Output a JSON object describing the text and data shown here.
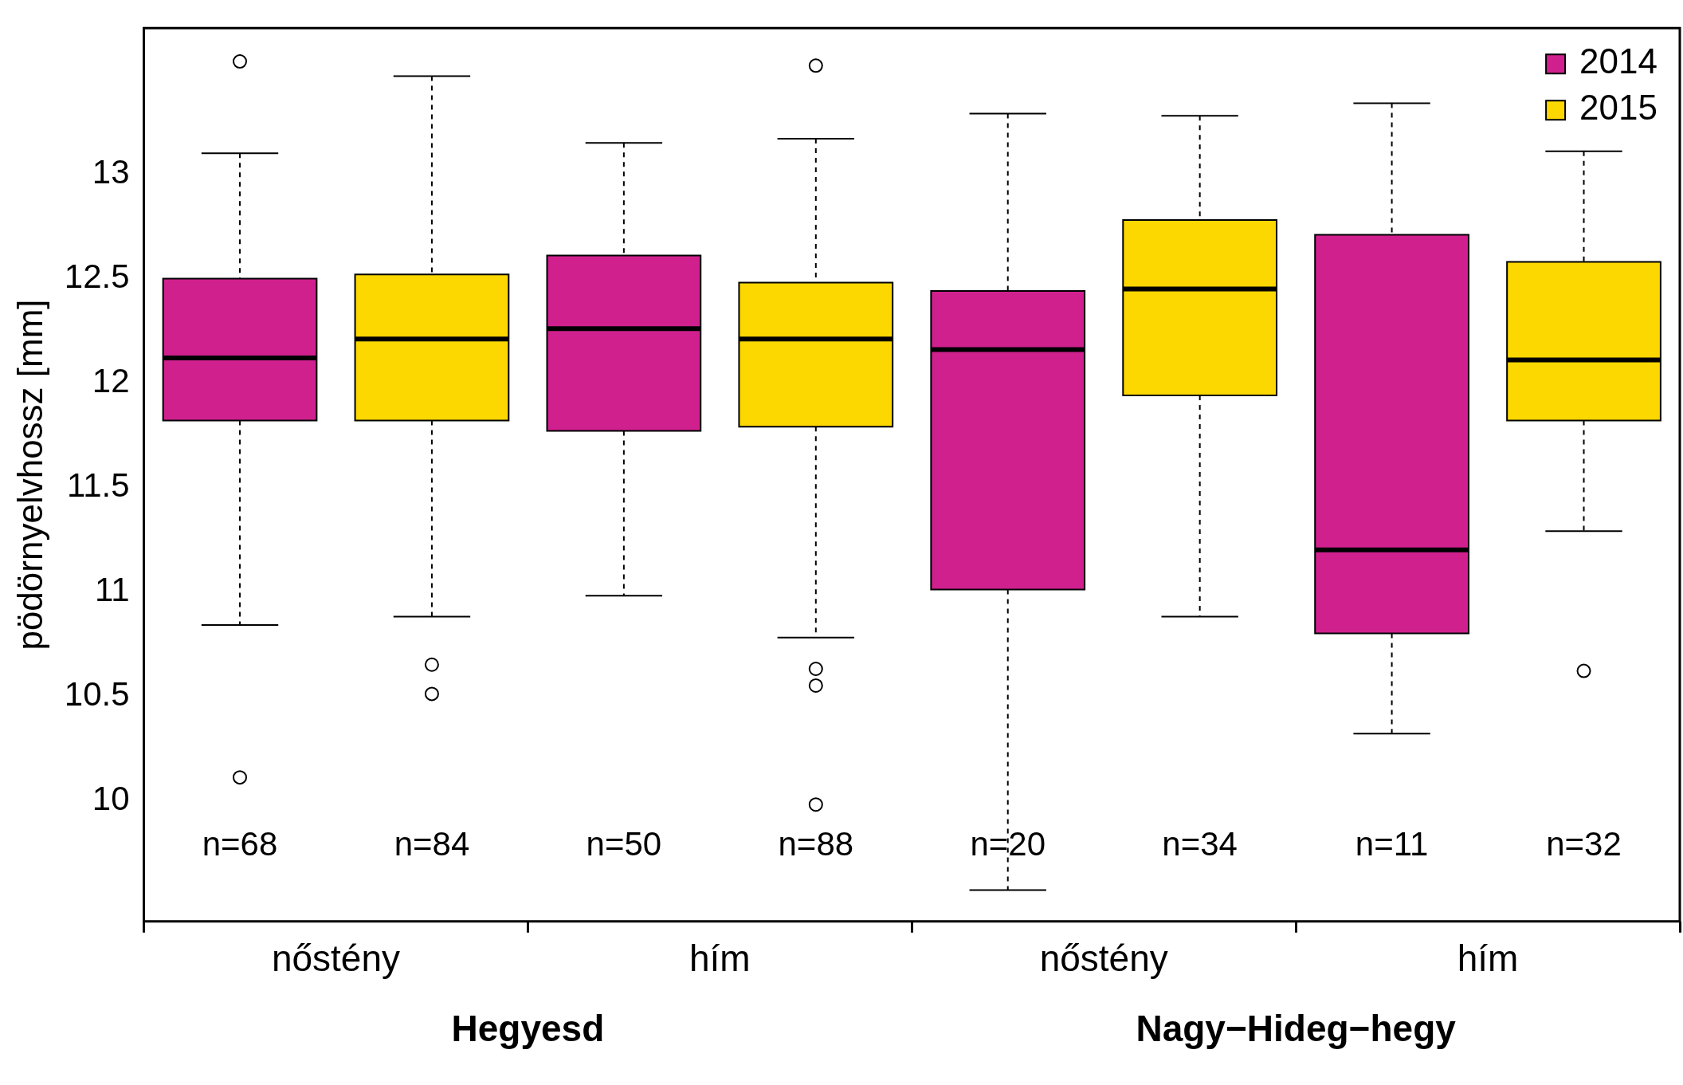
{
  "chart_data": {
    "type": "box",
    "ylabel": "pödörnyelvhossz [mm]",
    "categories": [
      "nőstény",
      "hím",
      "nőstény",
      "hím"
    ],
    "ylim": [
      9.42,
      13.7
    ],
    "yticks": [
      10,
      10.5,
      11,
      11.5,
      12,
      12.5,
      13
    ],
    "grid": false,
    "legend": "top right",
    "series": [
      {
        "name": "2014",
        "color": "#d0208e",
        "value_labels": [
          "n=68",
          "n=50",
          "n=20",
          "n=11"
        ],
        "boxes": [
          {
            "low": 10.84,
            "q1": 11.82,
            "median": 12.12,
            "q3": 12.5,
            "high": 13.1,
            "outliers": [
              13.54,
              10.11
            ]
          },
          {
            "low": 10.98,
            "q1": 11.77,
            "median": 12.26,
            "q3": 12.61,
            "high": 13.15
          },
          {
            "low": 9.57,
            "q1": 11.01,
            "median": 12.16,
            "q3": 12.44,
            "high": 13.29
          },
          {
            "low": 10.32,
            "q1": 10.8,
            "median": 11.2,
            "q3": 12.71,
            "high": 13.34
          }
        ]
      },
      {
        "name": "2015",
        "color": "#fdd700",
        "value_labels": [
          "n=84",
          "n=88",
          "n=34",
          "n=32"
        ],
        "boxes": [
          {
            "low": 10.88,
            "q1": 11.82,
            "median": 12.21,
            "q3": 12.52,
            "high": 13.47,
            "outliers": [
              10.65,
              10.51
            ]
          },
          {
            "low": 10.78,
            "q1": 11.79,
            "median": 12.21,
            "q3": 12.48,
            "high": 13.17,
            "outliers": [
              13.52,
              10.63,
              10.55,
              9.98
            ]
          },
          {
            "low": 10.88,
            "q1": 11.94,
            "median": 12.45,
            "q3": 12.78,
            "high": 13.28
          },
          {
            "low": 11.29,
            "q1": 11.82,
            "median": 12.11,
            "q3": 12.58,
            "high": 13.11,
            "outliers": [
              10.62
            ]
          }
        ]
      }
    ],
    "annotations": [
      "Hegyesd",
      "Nagy−Hideg−hegy"
    ]
  }
}
